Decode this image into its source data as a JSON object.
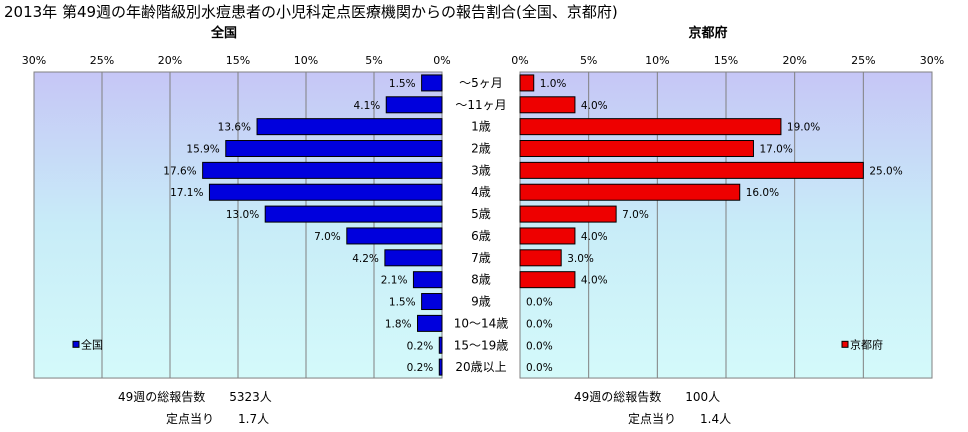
{
  "title": "2013年 第49週の年齢階級別水痘患者の小児科定点医療機関からの報告割合(全国、京都府)",
  "colors": {
    "national": "#0000dd",
    "kyoto": "#ee0000",
    "border": "#000000"
  },
  "chart_data": [
    {
      "type": "bar",
      "orientation": "horizontal",
      "direction": "right-to-left",
      "title": "全国",
      "xlim": [
        0,
        30
      ],
      "xticks": [
        "30%",
        "25%",
        "20%",
        "15%",
        "10%",
        "5%",
        "0%"
      ],
      "legend": {
        "label": "全国",
        "placement": "bottom-left"
      },
      "categories": [
        "〜5ヶ月",
        "〜11ヶ月",
        "1歳",
        "2歳",
        "3歳",
        "4歳",
        "5歳",
        "6歳",
        "7歳",
        "8歳",
        "9歳",
        "10〜14歳",
        "15〜19歳",
        "20歳以上"
      ],
      "series": [
        {
          "name": "全国",
          "values": [
            1.5,
            4.1,
            13.6,
            15.9,
            17.6,
            17.1,
            13.0,
            7.0,
            4.2,
            2.1,
            1.5,
            1.8,
            0.2,
            0.2
          ],
          "labels": [
            "1.5%",
            "4.1%",
            "13.6%",
            "15.9%",
            "17.6%",
            "17.1%",
            "13.0%",
            "7.0%",
            "4.2%",
            "2.1%",
            "1.5%",
            "1.8%",
            "0.2%",
            "0.2%"
          ]
        }
      ]
    },
    {
      "type": "bar",
      "orientation": "horizontal",
      "direction": "left-to-right",
      "title": "京都府",
      "xlim": [
        0,
        30
      ],
      "xticks": [
        "0%",
        "5%",
        "10%",
        "15%",
        "20%",
        "25%",
        "30%"
      ],
      "legend": {
        "label": "京都府",
        "placement": "bottom-right"
      },
      "categories": [
        "〜5ヶ月",
        "〜11ヶ月",
        "1歳",
        "2歳",
        "3歳",
        "4歳",
        "5歳",
        "6歳",
        "7歳",
        "8歳",
        "9歳",
        "10〜14歳",
        "15〜19歳",
        "20歳以上"
      ],
      "series": [
        {
          "name": "京都府",
          "values": [
            1.0,
            4.0,
            19.0,
            17.0,
            25.0,
            16.0,
            7.0,
            4.0,
            3.0,
            4.0,
            0.0,
            0.0,
            0.0,
            0.0
          ],
          "labels": [
            "1.0%",
            "4.0%",
            "19.0%",
            "17.0%",
            "25.0%",
            "16.0%",
            "7.0%",
            "4.0%",
            "3.0%",
            "4.0%",
            "0.0%",
            "0.0%",
            "0.0%",
            "0.0%"
          ]
        }
      ]
    }
  ],
  "footer": {
    "national_total": "49週の総報告数　　5323人",
    "national_per_site": "定点当り　　1.7人",
    "kyoto_total": "49週の総報告数　　100人",
    "kyoto_per_site": "定点当り　　1.4人"
  }
}
